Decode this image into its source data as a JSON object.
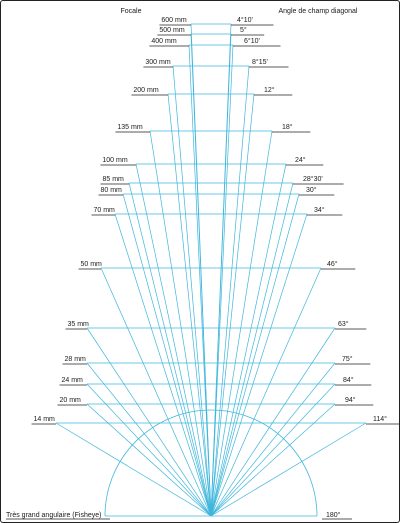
{
  "header": {
    "left_title": "Focale",
    "right_title": "Angle de champ diagonal"
  },
  "colors": {
    "line": "#3fb6dc",
    "underline": "#222222",
    "frame": "#222222"
  },
  "rows": [
    {
      "focal": "600 mm",
      "angle": "4°10'"
    },
    {
      "focal": "500 mm",
      "angle": "5°"
    },
    {
      "focal": "400 mm",
      "angle": "6°10'"
    },
    {
      "focal": "300 mm",
      "angle": "8°15'"
    },
    {
      "focal": "200 mm",
      "angle": "12°"
    },
    {
      "focal": "135 mm",
      "angle": "18°"
    },
    {
      "focal": "100 mm",
      "angle": "24°"
    },
    {
      "focal": "85 mm",
      "angle": "28°30'"
    },
    {
      "focal": "80 mm",
      "angle": "30°"
    },
    {
      "focal": "70 mm",
      "angle": "34°"
    },
    {
      "focal": "50 mm",
      "angle": "46°"
    },
    {
      "focal": "35 mm",
      "angle": "63°"
    },
    {
      "focal": "28 mm",
      "angle": "75°"
    },
    {
      "focal": "24 mm",
      "angle": "84°"
    },
    {
      "focal": "20 mm",
      "angle": "94°"
    },
    {
      "focal": "14 mm",
      "angle": "114°"
    }
  ],
  "fisheye": {
    "label": "Très grand angulaire (Fisheye)",
    "angle": "180°"
  }
}
